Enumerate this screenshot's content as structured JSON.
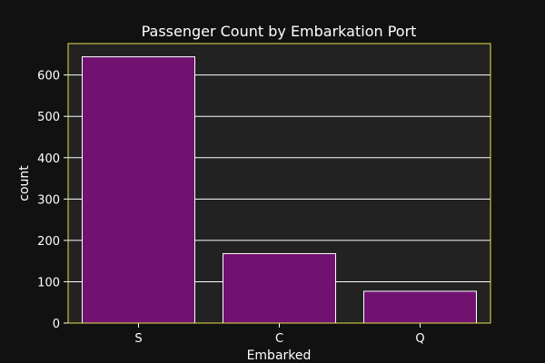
{
  "colors": {
    "page_bg": "#111111",
    "plot_bg": "#222222",
    "grid": "#ffffff",
    "frame": "#e5e04a",
    "bar_fill": "#711271",
    "bar_stroke": "#ffffff",
    "text": "#ffffff"
  },
  "chart_data": {
    "type": "bar",
    "title": "Passenger Count by Embarkation Port",
    "xlabel": "Embarked",
    "ylabel": "count",
    "categories": [
      "S",
      "C",
      "Q"
    ],
    "values": [
      644,
      168,
      77
    ],
    "ylim": [
      0,
      676
    ],
    "yticks": [
      0,
      100,
      200,
      300,
      400,
      500,
      600
    ],
    "grid": true,
    "legend": "none"
  }
}
